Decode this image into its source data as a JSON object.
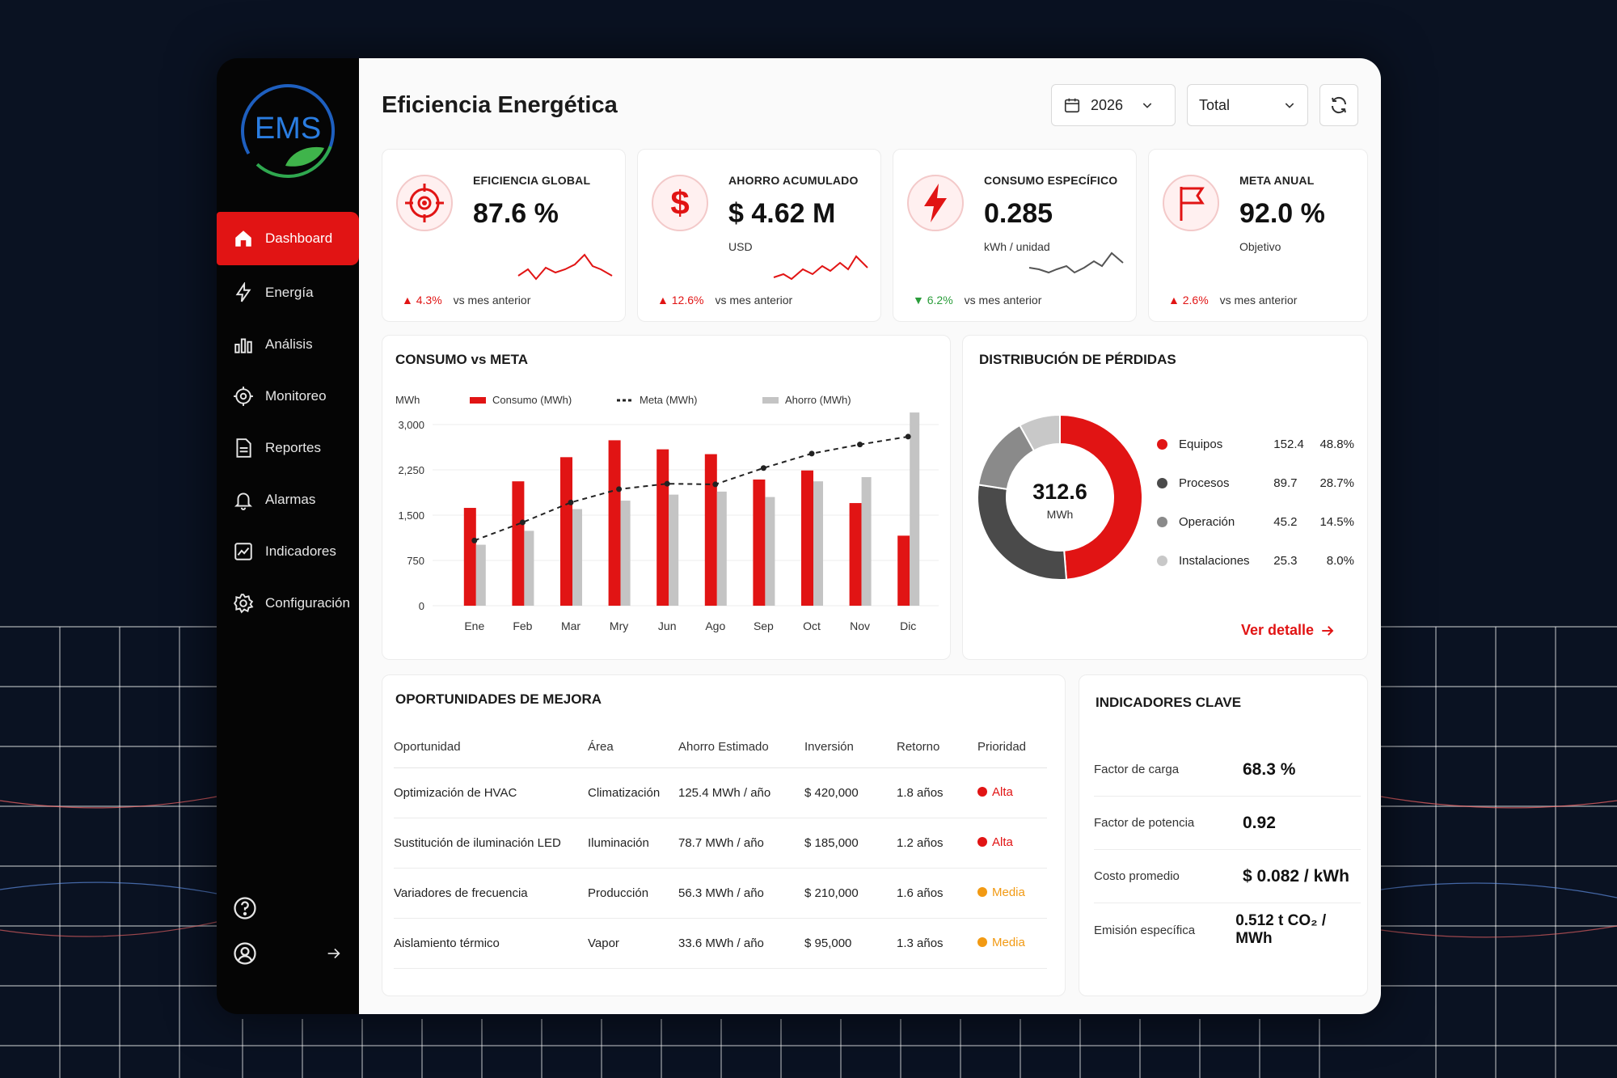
{
  "colors": {
    "accent": "#e11414",
    "good": "#2a9d3a",
    "medium": "#f29a13",
    "sidebar": "#050505",
    "gray_dark": "#666666",
    "gray_mid": "#8a8a8a",
    "gray_light": "#c8c8c8"
  },
  "brand": {
    "logo_text": "EMS"
  },
  "sidebar": {
    "items": [
      {
        "label": "Dashboard",
        "icon": "home-icon",
        "active": true
      },
      {
        "label": "Energía",
        "icon": "bolt-icon"
      },
      {
        "label": "Análisis",
        "icon": "bar-chart-icon"
      },
      {
        "label": "Monitoreo",
        "icon": "target-icon"
      },
      {
        "label": "Reportes",
        "icon": "document-icon"
      },
      {
        "label": "Alarmas",
        "icon": "bell-icon"
      },
      {
        "label": "Indicadores",
        "icon": "trend-icon"
      },
      {
        "label": "Configuración",
        "icon": "gear-icon"
      }
    ]
  },
  "header": {
    "title": "Eficiencia Energética",
    "year": "2026",
    "scope": "Total"
  },
  "kpis": [
    {
      "label": "EFICIENCIA GLOBAL",
      "value": "87.6 %",
      "unit": "",
      "delta": "▲ 4.3%",
      "delta_note": "vs mes anterior",
      "icon": "target-icon",
      "trend": "up"
    },
    {
      "label": "AHORRO ACUMULADO",
      "value": "$ 4.62 M",
      "unit": "USD",
      "delta": "▲ 12.6%",
      "delta_note": "vs mes anterior",
      "icon": "dollar-icon",
      "trend": "up"
    },
    {
      "label": "CONSUMO ESPECÍFICO",
      "value": "0.285",
      "unit": "kWh / unidad",
      "delta": "▼ 6.2%",
      "delta_note": "vs mes anterior",
      "icon": "bolt-icon",
      "trend": "down"
    },
    {
      "label": "META ANUAL",
      "value": "92.0 %",
      "unit": "Objetivo",
      "delta": "▲ 2.6%",
      "delta_note": "vs mes anterior",
      "icon": "flag-icon",
      "trend": "up"
    }
  ],
  "consumo_title": "CONSUMO vs META",
  "chart_data": [
    {
      "type": "bar",
      "title": "CONSUMO vs META",
      "ylabel": "MWh",
      "ylim": [
        0,
        3000
      ],
      "yticks": [
        "0",
        "750",
        "1,500",
        "2,250",
        "3,000"
      ],
      "categories": [
        "Ene",
        "Feb",
        "Mar",
        "Mry",
        "Jun",
        "Ago",
        "Sep",
        "Oct",
        "Nov",
        "Dic"
      ],
      "series": [
        {
          "name": "Consumo (MWh)",
          "kind": "bar",
          "color": "#e11414",
          "values": [
            1620,
            2060,
            2460,
            2740,
            2590,
            2510,
            2090,
            2240,
            1700,
            1160
          ]
        },
        {
          "name": "Meta (MWh)",
          "kind": "dashed-line",
          "color": "#222222",
          "values": [
            1080,
            1380,
            1710,
            1930,
            2020,
            2010,
            2280,
            2520,
            2670,
            2800
          ]
        },
        {
          "name": "Ahorro (MWh)",
          "kind": "bar",
          "color": "#c4c4c4",
          "values": [
            1010,
            1240,
            1600,
            1740,
            1840,
            1890,
            1800,
            2060,
            2130,
            3200
          ]
        }
      ],
      "legend": "top"
    },
    {
      "type": "pie",
      "title": "DISTRIBUCIÓN DE PÉRDIDAS",
      "center_value": "312.6",
      "center_unit": "MWh",
      "slices": [
        {
          "label": "Equipos",
          "value": 152.4,
          "pct": "48.8%",
          "color": "#e11414"
        },
        {
          "label": "Procesos",
          "value": 89.7,
          "pct": "28.7%",
          "color": "#4a4a4a"
        },
        {
          "label": "Operación",
          "value": 45.2,
          "pct": "14.5%",
          "color": "#8a8a8a"
        },
        {
          "label": "Instalaciones",
          "value": 25.3,
          "pct": "8.0%",
          "color": "#c8c8c8"
        }
      ]
    }
  ],
  "perdidas": {
    "title": "DISTRIBUCIÓN DE PÉRDIDAS",
    "link": "Ver detalle",
    "rows": [
      {
        "label": "Equipos",
        "value": "152.4",
        "pct": "48.8%"
      },
      {
        "label": "Procesos",
        "value": "89.7",
        "pct": "28.7%"
      },
      {
        "label": "Operación",
        "value": "45.2",
        "pct": "14.5%"
      },
      {
        "label": "Instalaciones",
        "value": "25.3",
        "pct": "8.0%"
      }
    ]
  },
  "oportunidades": {
    "title": "OPORTUNIDADES DE MEJORA",
    "headers": [
      "Oportunidad",
      "Área",
      "Ahorro Estimado",
      "Inversión",
      "Retorno",
      "Prioridad"
    ],
    "rows": [
      {
        "oportunidad": "Optimización de HVAC",
        "area": "Climatización",
        "ahorro": "125.4 MWh / año",
        "inversion": "$ 420,000",
        "retorno": "1.8 años",
        "prioridad": "Alta"
      },
      {
        "oportunidad": "Sustitución de iluminación LED",
        "area": "Iluminación",
        "ahorro": "78.7 MWh / año",
        "inversion": "$ 185,000",
        "retorno": "1.2 años",
        "prioridad": "Alta"
      },
      {
        "oportunidad": "Variadores de frecuencia",
        "area": "Producción",
        "ahorro": "56.3 MWh / año",
        "inversion": "$ 210,000",
        "retorno": "1.6 años",
        "prioridad": "Media"
      },
      {
        "oportunidad": "Aislamiento térmico",
        "area": "Vapor",
        "ahorro": "33.6 MWh / año",
        "inversion": "$ 95,000",
        "retorno": "1.3 años",
        "prioridad": "Media"
      }
    ]
  },
  "indicadores": {
    "title": "INDICADORES CLAVE",
    "rows": [
      {
        "label": "Factor de carga",
        "value": "68.3 %"
      },
      {
        "label": "Factor de potencia",
        "value": "0.92"
      },
      {
        "label": "Costo promedio",
        "value": "$ 0.082 / kWh"
      },
      {
        "label": "Emisión específica",
        "value": "0.512 t CO₂ / MWh"
      }
    ]
  }
}
